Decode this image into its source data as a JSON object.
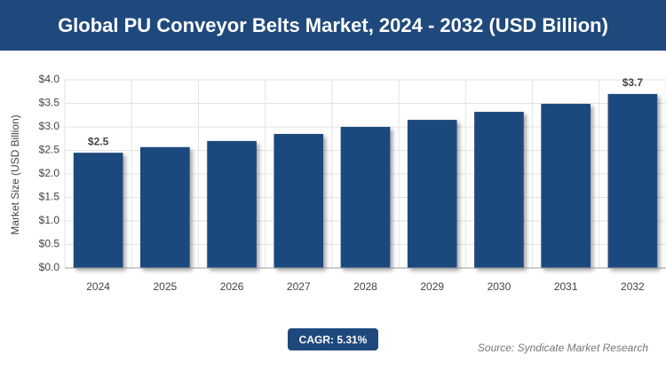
{
  "header": {
    "title": "Global PU Conveyor Belts Market, 2024 - 2032 (USD Billion)"
  },
  "chart_data": {
    "type": "bar",
    "y_label": "Market Size (USD Billion)",
    "categories": [
      "2024",
      "2025",
      "2026",
      "2027",
      "2028",
      "2029",
      "2030",
      "2031",
      "2032"
    ],
    "values": [
      2.45,
      2.57,
      2.7,
      2.85,
      3.0,
      3.15,
      3.32,
      3.49,
      3.7
    ],
    "value_labels": [
      "$2.5",
      null,
      null,
      null,
      null,
      null,
      null,
      null,
      "$3.7"
    ],
    "color": "#1f497d",
    "ylim": [
      0,
      4
    ],
    "yticks": [
      {
        "value": 0,
        "label": "$0.0"
      },
      {
        "value": 0.5,
        "label": "$0.5"
      },
      {
        "value": 1,
        "label": "$1.0"
      },
      {
        "value": 1.5,
        "label": "$1.5"
      },
      {
        "value": 2,
        "label": "$2.0"
      },
      {
        "value": 2.5,
        "label": "$2.5"
      },
      {
        "value": 3,
        "label": "$3.0"
      },
      {
        "value": 3.5,
        "label": "$3.5"
      },
      {
        "value": 4,
        "label": "$4.0"
      }
    ],
    "grid": true
  },
  "footer": {
    "cagr": "CAGR: 5.31%",
    "source": "Source: Syndicate Market Research"
  }
}
